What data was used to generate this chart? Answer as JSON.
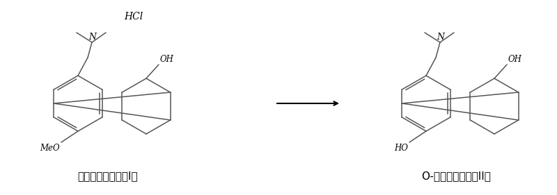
{
  "background_color": "#ffffff",
  "label1": "文拉法羊盐酸盐（I）",
  "label2": "O-去甲文拉法羊（II）",
  "hcl_label": "HCl",
  "oh_label1": "OH",
  "oh_label2": "OH",
  "meo_label": "MeO",
  "ho_label": "HO",
  "arrow_color": "#000000",
  "line_color": "#555555",
  "text_color": "#000000",
  "figsize": [
    8.0,
    2.81
  ],
  "dpi": 100
}
